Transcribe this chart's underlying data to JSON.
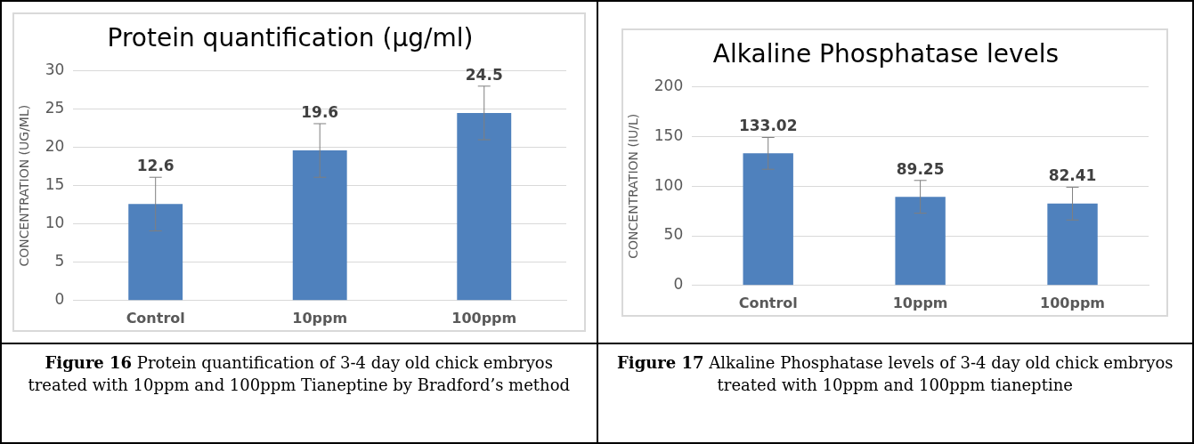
{
  "chart_data": [
    {
      "type": "bar",
      "title": "Protein quantification (μg/ml)",
      "ylabel": "CONCENTRATION (UG/ML)",
      "categories": [
        "Control",
        "10ppm",
        "100ppm"
      ],
      "values": [
        12.6,
        19.6,
        24.5
      ],
      "errors": [
        3.5,
        3.5,
        3.5
      ],
      "color": "#4f81bd",
      "ylim": [
        0,
        30
      ],
      "yticks": [
        0,
        5,
        10,
        15,
        20,
        25,
        30
      ],
      "grid": "y",
      "data_labels": true,
      "legend": false,
      "annotations": [
        "Figure 16 Protein quantification of 3-4 day old chick embryos treated with 10ppm and 100ppm Tianeptine by Bradford’s method"
      ]
    },
    {
      "type": "bar",
      "title": "Alkaline Phosphatase levels",
      "ylabel": "CONCENTRATION (IU/L)",
      "categories": [
        "Control",
        "10ppm",
        "100ppm"
      ],
      "values": [
        133.02,
        89.25,
        82.41
      ],
      "errors": [
        16,
        16.5,
        16.5
      ],
      "color": "#4f81bd",
      "ylim": [
        0,
        200
      ],
      "yticks": [
        0,
        50,
        100,
        150,
        200
      ],
      "grid": "y",
      "data_labels": true,
      "legend": false,
      "annotations": [
        "Figure 17 Alkaline Phosphatase levels of 3-4 day old chick embryos treated with 10ppm and 100ppm tianeptine"
      ]
    }
  ]
}
